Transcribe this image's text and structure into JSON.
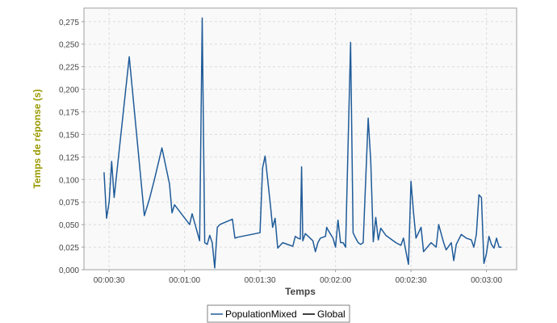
{
  "chart_data": {
    "type": "line",
    "title": "",
    "xlabel": "Temps",
    "ylabel": "Temps de réponse (s)",
    "ylim": [
      0,
      0.29
    ],
    "xlim_seconds": [
      20,
      192
    ],
    "x_tick_labels": [
      "00:00:30",
      "00:01:00",
      "00:01:30",
      "00:02:00",
      "00:02:30",
      "00:03:00"
    ],
    "x_tick_values_seconds": [
      30,
      60,
      90,
      120,
      150,
      180
    ],
    "y_ticks": [
      0.0,
      0.025,
      0.05,
      0.075,
      0.1,
      0.125,
      0.15,
      0.175,
      0.2,
      0.225,
      0.25,
      0.275
    ],
    "y_tick_labels": [
      "0,000",
      "0,025",
      "0,050",
      "0,075",
      "0,100",
      "0,125",
      "0,150",
      "0,175",
      "0,200",
      "0,225",
      "0,250",
      "0,275"
    ],
    "grid": true,
    "legend_position": "bottom",
    "colors": {
      "series_population": "#1f5b99",
      "series_global": "#000000",
      "axis_label": "#999900",
      "plot_background": "#f9f9f9",
      "grid": "#dddddd"
    },
    "series": [
      {
        "name": "PopulationMixed",
        "x_seconds": [
          28,
          29,
          30,
          31,
          32,
          38,
          44,
          46,
          48,
          51,
          54,
          55,
          56,
          62,
          63,
          66,
          67,
          68,
          69,
          70,
          71,
          72,
          73,
          74,
          79,
          80,
          81,
          90,
          91,
          92,
          94,
          95,
          96,
          97,
          99,
          103,
          104,
          105,
          106,
          106.5,
          107,
          108,
          111,
          112,
          113,
          114,
          116,
          116.5,
          117,
          119,
          120,
          121,
          122,
          123,
          124,
          126,
          127,
          128,
          129,
          130,
          131,
          133,
          134,
          135,
          136,
          137,
          138,
          140,
          144,
          146,
          147,
          148,
          149,
          150,
          151,
          152,
          154,
          155,
          158,
          160,
          161,
          162,
          163,
          164,
          166,
          167,
          168,
          170,
          172,
          174,
          175,
          176,
          177,
          178,
          179,
          180,
          181,
          182,
          183,
          184,
          185,
          186
        ],
        "values": [
          0.108,
          0.057,
          0.075,
          0.12,
          0.08,
          0.236,
          0.06,
          0.078,
          0.1,
          0.135,
          0.095,
          0.063,
          0.072,
          0.05,
          0.062,
          0.032,
          0.279,
          0.03,
          0.028,
          0.038,
          0.03,
          0.002,
          0.047,
          0.05,
          0.056,
          0.035,
          0.036,
          0.041,
          0.113,
          0.126,
          0.075,
          0.047,
          0.057,
          0.024,
          0.03,
          0.026,
          0.037,
          0.035,
          0.034,
          0.114,
          0.032,
          0.04,
          0.032,
          0.02,
          0.03,
          0.035,
          0.037,
          0.047,
          0.044,
          0.035,
          0.025,
          0.055,
          0.03,
          0.03,
          0.025,
          0.252,
          0.041,
          0.035,
          0.03,
          0.028,
          0.03,
          0.168,
          0.12,
          0.031,
          0.058,
          0.033,
          0.046,
          0.038,
          0.03,
          0.027,
          0.035,
          0.02,
          0.006,
          0.098,
          0.064,
          0.035,
          0.047,
          0.02,
          0.03,
          0.025,
          0.05,
          0.04,
          0.03,
          0.022,
          0.03,
          0.01,
          0.028,
          0.039,
          0.035,
          0.033,
          0.025,
          0.039,
          0.083,
          0.08,
          0.007,
          0.018,
          0.037,
          0.028,
          0.024,
          0.035,
          0.025,
          0.025
        ]
      },
      {
        "name": "Global",
        "x_seconds": [],
        "values": []
      }
    ]
  }
}
